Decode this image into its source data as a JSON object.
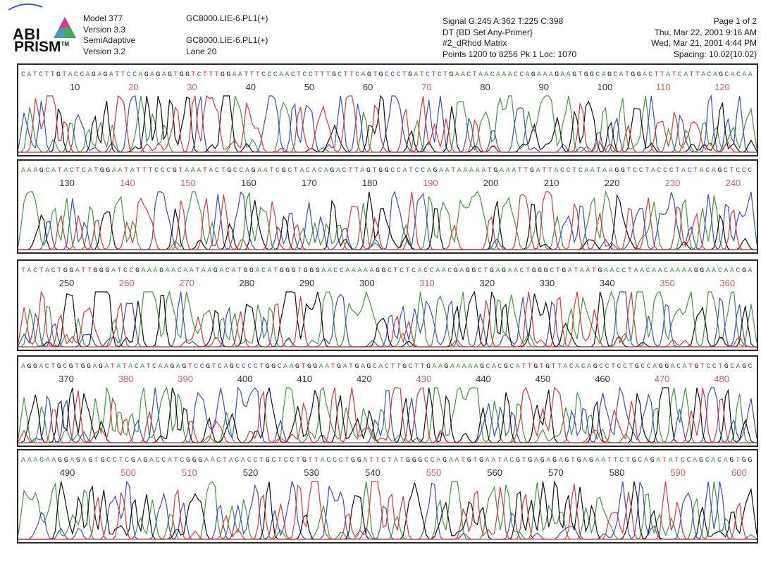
{
  "header": {
    "logo": {
      "line1": "ABI",
      "line2": "PRISM",
      "tm": "TM"
    },
    "col1": [
      "Model 377",
      "Version 3.3",
      "SemiAdaptive",
      "Version 3.2"
    ],
    "col2": [
      "GC8000.LIE-6.PL1(+)",
      "",
      "GC8000.LIE-6.PL1(+)",
      "Lane 20"
    ],
    "col3": [
      "Signal G:245 A:362 T:225 C:398",
      "DT {BD Set Any-Primer}",
      "#2_dRhod Matrix",
      "Points 1200 to 8256   Pk 1 Loc: 1070"
    ],
    "col4": [
      "Page 1 of 2",
      "Thu, Mar 22, 2001  9:16 AM",
      "Wed, Mar 21, 2001  4:44 PM",
      "Spacing: 10.02{10.02}"
    ]
  },
  "colors": {
    "A": "#3f9a3a",
    "C": "#3a4fc4",
    "G": "#111111",
    "T": "#d6393a",
    "border": "#2a2a2a"
  },
  "panels": [
    {
      "sequence": "CATCTTGTACCAGAGATTCCAGAGAGTGGTCTTTGGAATTTCCCAACTCCTTTGCTTCAGTGCCCTGATCTCTGAACTAACAAACCAGAAAGAAGTGGCAGCATGGACTTATCATTACAGCACAA",
      "numbers": [
        "10",
        "20",
        "30",
        "40",
        "50",
        "60",
        "70",
        "80",
        "90",
        "100",
        "110",
        "120"
      ]
    },
    {
      "sequence": "AAAGCATACTCATGGAATATTTCCCGTAAATACTGCCAGAATCGCTACACAGACTTAGTGGCCATCCAGAATAAAAATGAAATTGATTACCTCAATAAGGTCCTACCCTACTACAGCTCCC",
      "numbers": [
        "130",
        "140",
        "150",
        "160",
        "170",
        "180",
        "190",
        "200",
        "210",
        "220",
        "230",
        "240"
      ]
    },
    {
      "sequence": "TACTACTGGATTGGGATCCGAAAGAACAATAAGACATGGACATGGGTGGGAACCAAAAAGGCTCTCACCAACGAGGCTGAGAACTGGGCTGATAATGAACCTAACAACAAAAGGAACAACGA",
      "numbers": [
        "250",
        "260",
        "270",
        "280",
        "290",
        "300",
        "310",
        "320",
        "330",
        "340",
        "350",
        "360"
      ]
    },
    {
      "sequence": "AGGACTGCGTGGAGATATACATCAAGAGTCCGTCAGCCCCTGGCAAGTGGAATGATGAGCACTTGCTTGAAGAAAAAGCACGCATTGTGTTACACAGCCTCCTGCCAGGACATGTCCTGCAGC",
      "numbers": [
        "370",
        "380",
        "390",
        "400",
        "410",
        "420",
        "430",
        "440",
        "450",
        "460",
        "470",
        "480"
      ]
    },
    {
      "sequence": "AAACAAGGAGAGTGCCTCGAGACCATCGGGAACTACACCTGCTCCTGTTACCCTGGATTCTATGGGCCAGAATGTGAATACGTGAGAGAGTGAGAATTCTGCAGATATCCAGCACAGTGG",
      "numbers": [
        "490",
        "500",
        "510",
        "520",
        "530",
        "540",
        "550",
        "560",
        "570",
        "580",
        "590",
        "600"
      ]
    }
  ]
}
